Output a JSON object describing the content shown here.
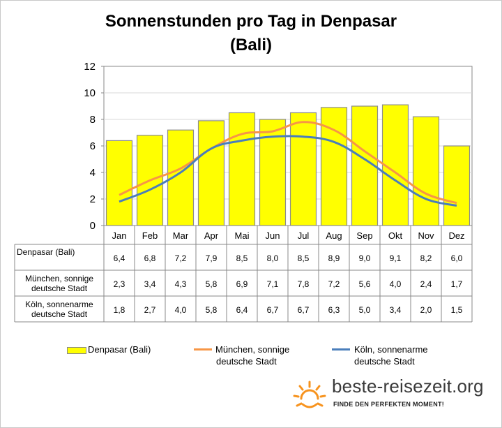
{
  "chart_data": {
    "type": "bar",
    "title": "Sonnenstunden pro Tag in Denpasar",
    "title_line2": "(Bali)",
    "categories": [
      "Jan",
      "Feb",
      "Mar",
      "Apr",
      "Mai",
      "Jun",
      "Jul",
      "Aug",
      "Sep",
      "Okt",
      "Nov",
      "Dez"
    ],
    "ylim": [
      0,
      12
    ],
    "yticks": [
      0,
      2,
      4,
      6,
      8,
      10,
      12
    ],
    "grid": true,
    "legend_position": "bottom",
    "series": [
      {
        "name": "Denpasar (Bali)",
        "type": "bar",
        "color": "#ffff00",
        "values": [
          6.4,
          6.8,
          7.2,
          7.9,
          8.5,
          8.0,
          8.5,
          8.9,
          9.0,
          9.1,
          8.2,
          6.0
        ],
        "labels": [
          "6,4",
          "6,8",
          "7,2",
          "7,9",
          "8,5",
          "8,0",
          "8,5",
          "8,9",
          "9,0",
          "9,1",
          "8,2",
          "6,0"
        ]
      },
      {
        "name": "München, sonnige deutsche Stadt",
        "name_line1": "München, sonnige",
        "name_line2": "deutsche Stadt",
        "type": "line",
        "color": "#f79646",
        "values": [
          2.3,
          3.4,
          4.3,
          5.8,
          6.9,
          7.1,
          7.8,
          7.2,
          5.6,
          4.0,
          2.4,
          1.7
        ],
        "labels": [
          "2,3",
          "3,4",
          "4,3",
          "5,8",
          "6,9",
          "7,1",
          "7,8",
          "7,2",
          "5,6",
          "4,0",
          "2,4",
          "1,7"
        ]
      },
      {
        "name": "Köln, sonnenarme deutsche Stadt",
        "name_line1": "Köln, sonnenarme",
        "name_line2": "deutsche Stadt",
        "type": "line",
        "color": "#4a7ebb",
        "values": [
          1.8,
          2.7,
          4.0,
          5.8,
          6.4,
          6.7,
          6.7,
          6.3,
          5.0,
          3.4,
          2.0,
          1.5
        ],
        "labels": [
          "1,8",
          "2,7",
          "4,0",
          "5,8",
          "6,4",
          "6,7",
          "6,7",
          "6,3",
          "5,0",
          "3,4",
          "2,0",
          "1,5"
        ]
      }
    ]
  },
  "branding": {
    "site": "beste-reisezeit.org",
    "tagline": "FINDE DEN PERFEKTEN MOMENT!",
    "sun_color": "#f7931e"
  }
}
